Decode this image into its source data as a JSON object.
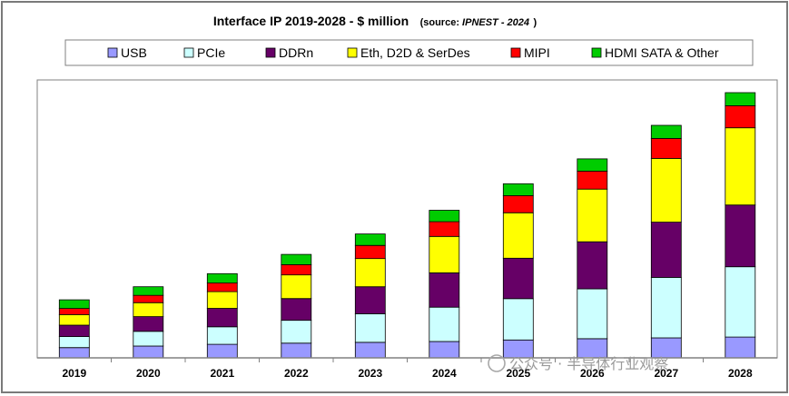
{
  "title": {
    "main": "Interface IP  2019-2028 - $ million",
    "source_prefix": "(source: ",
    "source_name": "IPNEST - 2024",
    "source_suffix": ")"
  },
  "watermark": "公众号 · 半导体行业观察",
  "colors": {
    "USB": "#9999ff",
    "PCIe": "#ccffff",
    "DDRn": "#660066",
    "Eth, D2D & SerDes": "#ffff00",
    "MIPI": "#ff0000",
    "HDMI SATA & Other": "#00cc00",
    "axis": "#808080",
    "bar_stroke": "#000000"
  },
  "chart_data": {
    "type": "bar",
    "stacked": true,
    "categories": [
      "2019",
      "2020",
      "2021",
      "2022",
      "2023",
      "2024",
      "2025",
      "2026",
      "2027",
      "2028"
    ],
    "series": [
      {
        "name": "USB",
        "values": [
          125,
          145,
          165,
          180,
          190,
          200,
          220,
          235,
          245,
          255
        ]
      },
      {
        "name": "PCIe",
        "values": [
          135,
          180,
          215,
          280,
          350,
          420,
          505,
          610,
          740,
          860
        ]
      },
      {
        "name": "DDRn",
        "values": [
          140,
          180,
          225,
          265,
          330,
          420,
          495,
          575,
          675,
          755
        ]
      },
      {
        "name": "Eth, D2D & SerDes",
        "values": [
          130,
          170,
          205,
          290,
          345,
          445,
          555,
          645,
          780,
          945
        ]
      },
      {
        "name": "MIPI",
        "values": [
          75,
          90,
          105,
          125,
          160,
          180,
          210,
          220,
          245,
          270
        ]
      },
      {
        "name": "HDMI SATA & Other",
        "values": [
          105,
          105,
          115,
          125,
          140,
          140,
          145,
          150,
          160,
          160
        ]
      }
    ],
    "ylim": [
      0,
      3400
    ],
    "grid": false,
    "legend_position": "top",
    "xlabel": "",
    "ylabel": ""
  }
}
